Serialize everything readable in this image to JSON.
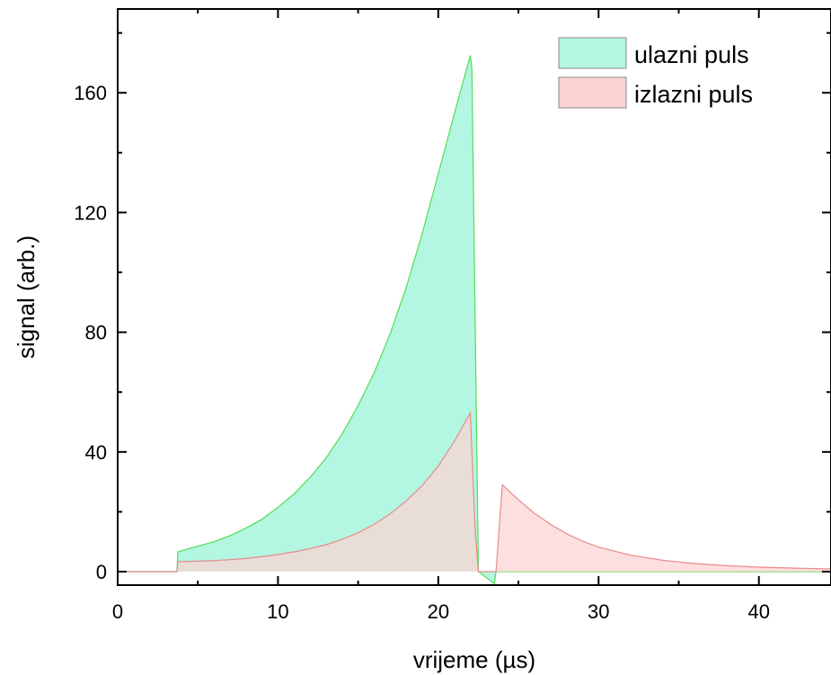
{
  "chart_data": {
    "type": "area",
    "xlabel": "vrijeme (µs)",
    "ylabel": "signal (arb.)",
    "xlim": [
      0,
      44.5
    ],
    "ylim": [
      -4.5,
      188
    ],
    "xticks": [
      0,
      10,
      20,
      30,
      40
    ],
    "yticks": [
      0,
      40,
      80,
      120,
      160
    ],
    "grid": false,
    "legend_position": "top-right",
    "series": [
      {
        "name": "ulazni puls",
        "fill": "#b3f6e1",
        "stroke": "#55dd55",
        "x": [
          0,
          3.7,
          3.75,
          5,
          6,
          7,
          8,
          9,
          10,
          11,
          12,
          13,
          14,
          15,
          16,
          17,
          18,
          19,
          20,
          21,
          22,
          22.1,
          22.5,
          23.5,
          23.6,
          25,
          30,
          35,
          40,
          44.5
        ],
        "y": [
          0,
          0,
          6.6,
          8.5,
          10,
          12,
          14.5,
          17.5,
          21.5,
          26,
          31.5,
          38,
          46,
          55.5,
          66.5,
          79.5,
          95,
          113,
          133,
          153,
          172.5,
          168,
          0,
          -4,
          0,
          0,
          0,
          0,
          0,
          0
        ]
      },
      {
        "name": "izlazni puls",
        "fill": "#fcd2d2",
        "stroke": "#e88b8b",
        "x": [
          0,
          3.7,
          3.75,
          5,
          6,
          7,
          8,
          9,
          10,
          11,
          12,
          13,
          14,
          15,
          16,
          17,
          18,
          19,
          20,
          21,
          22,
          22.3,
          22.5,
          22.8,
          23.5,
          23.6,
          24,
          25,
          26,
          27,
          28,
          29,
          30,
          32,
          34,
          36,
          38,
          40,
          42,
          44.5
        ],
        "y": [
          0,
          0,
          3.3,
          3.5,
          3.7,
          4,
          4.4,
          5,
          5.7,
          6.6,
          7.7,
          9,
          10.8,
          13,
          15.8,
          19.3,
          23.6,
          28.8,
          35.3,
          43.5,
          53,
          14,
          0,
          0,
          0,
          0,
          29,
          24,
          19.5,
          15.8,
          12.7,
          10.2,
          8.2,
          5.5,
          3.8,
          2.7,
          2,
          1.5,
          1.2,
          0.9
        ]
      }
    ]
  }
}
